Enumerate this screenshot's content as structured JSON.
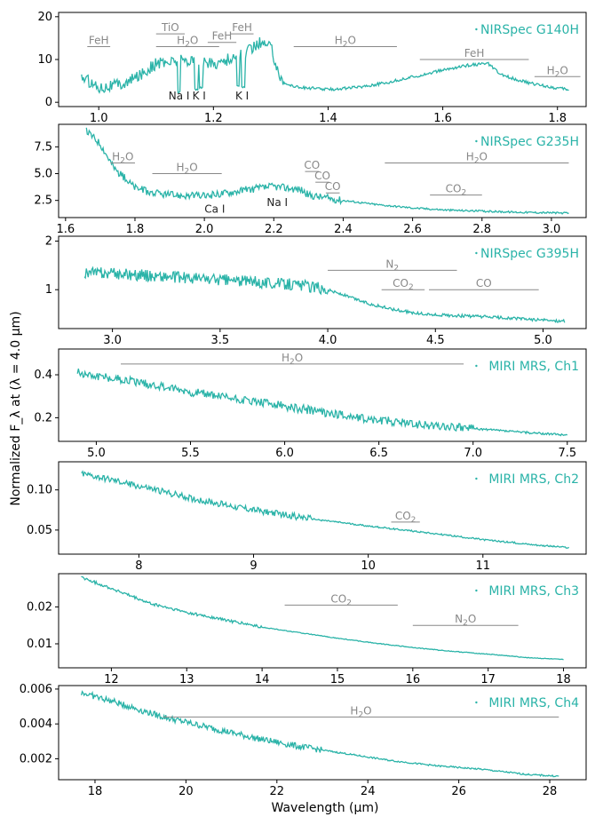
{
  "figure": {
    "ylabel": "Normalized F_λ at (λ = 4.0 μm)",
    "xlabel": "Wavelength (μm)"
  },
  "colors": {
    "spectrum": "#2ab3a8",
    "annotation": "#888888",
    "atom": "#222222"
  },
  "chart_data": [
    {
      "type": "line",
      "legend": "NIRSpec G140H",
      "legend_position": "top-right",
      "xlim": [
        0.93,
        1.85
      ],
      "ylim": [
        -1,
        21
      ],
      "xticks": [
        1.0,
        1.2,
        1.4,
        1.6,
        1.8
      ],
      "xtick_labels": [
        "1.0",
        "1.2",
        "1.4",
        "1.6",
        "1.8"
      ],
      "yticks": [
        0,
        10,
        20
      ],
      "ytick_labels": [
        "0",
        "10",
        "20"
      ],
      "series": [
        {
          "x": [
            0.97,
            1.0,
            1.05,
            1.1,
            1.15,
            1.2,
            1.25,
            1.28,
            1.3,
            1.32,
            1.35,
            1.4,
            1.45,
            1.5,
            1.55,
            1.6,
            1.65,
            1.68,
            1.7,
            1.75,
            1.8,
            1.82
          ],
          "y": [
            6,
            3.5,
            4.5,
            9,
            10,
            9,
            11,
            14,
            13,
            4.5,
            3.5,
            3,
            3.5,
            4.5,
            6,
            7.5,
            8.8,
            9,
            6.5,
            4.5,
            3.3,
            3
          ]
        }
      ],
      "dips": [
        {
          "x": 1.14,
          "y": 2.5
        },
        {
          "x": 1.17,
          "y": 3
        },
        {
          "x": 1.178,
          "y": 3.5
        },
        {
          "x": 1.243,
          "y": 4
        },
        {
          "x": 1.252,
          "y": 3.5
        }
      ],
      "noise": 1.4,
      "noise_range": [
        0.97,
        1.32
      ],
      "annotations": [
        {
          "label": "FeH",
          "sub": "",
          "x1": 0.98,
          "x2": 1.02,
          "y": 13
        },
        {
          "label": "TiO",
          "sub": "",
          "x1": 1.1,
          "x2": 1.15,
          "y": 16
        },
        {
          "label": "H",
          "sub": "2",
          "tail": "O",
          "x1": 1.1,
          "x2": 1.21,
          "y": 13
        },
        {
          "label": "FeH",
          "sub": "",
          "x1": 1.19,
          "x2": 1.24,
          "y": 14
        },
        {
          "label": "FeH",
          "sub": "",
          "x1": 1.23,
          "x2": 1.27,
          "y": 16
        },
        {
          "label": "H",
          "sub": "2",
          "tail": "O",
          "x1": 1.34,
          "x2": 1.52,
          "y": 13
        },
        {
          "label": "FeH",
          "sub": "",
          "x1": 1.56,
          "x2": 1.75,
          "y": 10
        },
        {
          "label": "H",
          "sub": "2",
          "tail": "O",
          "x1": 1.76,
          "x2": 1.84,
          "y": 6
        }
      ],
      "atom_labels": [
        {
          "text": "Na I",
          "x": 1.14,
          "y": 1.5
        },
        {
          "text": "K I",
          "x": 1.175,
          "y": 1.5
        },
        {
          "text": "K I",
          "x": 1.25,
          "y": 1.5
        }
      ]
    },
    {
      "type": "line",
      "legend": "NIRSpec G235H",
      "legend_position": "top-right",
      "xlim": [
        1.58,
        3.1
      ],
      "ylim": [
        0.9,
        9.6
      ],
      "xticks": [
        1.6,
        1.8,
        2.0,
        2.2,
        2.4,
        2.6,
        2.8,
        3.0
      ],
      "xtick_labels": [
        "1.6",
        "1.8",
        "2.0",
        "2.2",
        "2.4",
        "2.6",
        "2.8",
        "3.0"
      ],
      "yticks": [
        2.5,
        5.0,
        7.5
      ],
      "ytick_labels": [
        "2.5",
        "5.0",
        "7.5"
      ],
      "series": [
        {
          "x": [
            1.66,
            1.7,
            1.74,
            1.8,
            1.85,
            1.9,
            2.0,
            2.1,
            2.2,
            2.28,
            2.3,
            2.4,
            2.5,
            2.6,
            2.7,
            2.8,
            2.9,
            3.0,
            3.05
          ],
          "y": [
            9,
            7.8,
            5.5,
            3.7,
            3.2,
            3.0,
            2.9,
            3.4,
            3.8,
            3.5,
            3.0,
            2.5,
            2.1,
            1.8,
            1.6,
            1.5,
            1.4,
            1.35,
            1.3
          ]
        }
      ],
      "dips": [],
      "noise": 0.35,
      "noise_range": [
        1.66,
        2.4
      ],
      "annotations": [
        {
          "label": "H",
          "sub": "2",
          "tail": "O",
          "x1": 1.73,
          "x2": 1.8,
          "y": 6
        },
        {
          "label": "H",
          "sub": "2",
          "tail": "O",
          "x1": 1.85,
          "x2": 2.05,
          "y": 5
        },
        {
          "label": "CO",
          "sub": "",
          "x1": 2.29,
          "x2": 2.33,
          "y": 5.2
        },
        {
          "label": "CO",
          "sub": "",
          "x1": 2.32,
          "x2": 2.36,
          "y": 4.2
        },
        {
          "label": "CO",
          "sub": "",
          "x1": 2.35,
          "x2": 2.39,
          "y": 3.2
        },
        {
          "label": "H",
          "sub": "2",
          "tail": "O",
          "x1": 2.52,
          "x2": 3.05,
          "y": 6
        },
        {
          "label": "CO",
          "sub": "2",
          "tail": "",
          "x1": 2.65,
          "x2": 2.8,
          "y": 3
        }
      ],
      "atom_labels": [
        {
          "text": "Ca I",
          "x": 2.03,
          "y": 1.7
        },
        {
          "text": "Na I",
          "x": 2.21,
          "y": 2.3
        }
      ]
    },
    {
      "type": "line",
      "legend": "NIRSpec G395H",
      "legend_position": "top-right",
      "xlim": [
        2.75,
        5.2
      ],
      "ylim": [
        0.2,
        2.1
      ],
      "xticks": [
        3.0,
        3.5,
        4.0,
        4.5,
        5.0
      ],
      "xtick_labels": [
        "3.0",
        "3.5",
        "4.0",
        "4.5",
        "5.0"
      ],
      "yticks": [
        1,
        2
      ],
      "ytick_labels": [
        "1",
        "2"
      ],
      "series": [
        {
          "x": [
            2.87,
            3.0,
            3.2,
            3.4,
            3.6,
            3.8,
            3.9,
            4.0,
            4.1,
            4.2,
            4.3,
            4.4,
            4.5,
            4.7,
            4.9,
            5.1
          ],
          "y": [
            1.35,
            1.33,
            1.28,
            1.23,
            1.18,
            1.12,
            1.08,
            1.0,
            0.85,
            0.7,
            0.6,
            0.52,
            0.48,
            0.45,
            0.4,
            0.35
          ]
        }
      ],
      "dips": [],
      "noise": 0.12,
      "noise_range": [
        2.87,
        4.0
      ],
      "annotations": [
        {
          "label": "N",
          "sub": "2",
          "tail": "",
          "x1": 4.0,
          "x2": 4.6,
          "y": 1.4
        },
        {
          "label": "CO",
          "sub": "2",
          "tail": "",
          "x1": 4.25,
          "x2": 4.45,
          "y": 1.0
        },
        {
          "label": "CO",
          "sub": "",
          "x1": 4.47,
          "x2": 4.98,
          "y": 1.0
        }
      ],
      "atom_labels": []
    },
    {
      "type": "line",
      "legend": "MIRI MRS, Ch1",
      "legend_position": "top-right",
      "xlim": [
        4.8,
        7.6
      ],
      "ylim": [
        0.09,
        0.52
      ],
      "xticks": [
        5.0,
        5.5,
        6.0,
        6.5,
        7.0,
        7.5
      ],
      "xtick_labels": [
        "5.0",
        "5.5",
        "6.0",
        "6.5",
        "7.0",
        "7.5"
      ],
      "yticks": [
        0.2,
        0.4
      ],
      "ytick_labels": [
        "0.2",
        "0.4"
      ],
      "series": [
        {
          "x": [
            4.9,
            5.2,
            5.5,
            5.8,
            6.1,
            6.4,
            6.7,
            7.0,
            7.3,
            7.5
          ],
          "y": [
            0.41,
            0.37,
            0.32,
            0.28,
            0.24,
            0.2,
            0.17,
            0.15,
            0.13,
            0.12
          ]
        }
      ],
      "dips": [],
      "noise": 0.02,
      "noise_range": [
        4.9,
        7.0
      ],
      "annotations": [
        {
          "label": "H",
          "sub": "2",
          "tail": "O",
          "x1": 5.13,
          "x2": 6.95,
          "y": 0.45
        }
      ],
      "atom_labels": []
    },
    {
      "type": "line",
      "legend": "MIRI MRS, Ch2",
      "legend_position": "top-right",
      "xlim": [
        7.3,
        11.9
      ],
      "ylim": [
        0.02,
        0.135
      ],
      "xticks": [
        8,
        9,
        10,
        11
      ],
      "xtick_labels": [
        "8",
        "9",
        "10",
        "11"
      ],
      "yticks": [
        0.05,
        0.1
      ],
      "ytick_labels": [
        "0.05",
        "0.10"
      ],
      "series": [
        {
          "x": [
            7.5,
            8.0,
            8.5,
            9.0,
            9.5,
            10.0,
            10.5,
            11.0,
            11.5,
            11.75
          ],
          "y": [
            0.12,
            0.105,
            0.088,
            0.075,
            0.064,
            0.055,
            0.047,
            0.038,
            0.031,
            0.028
          ]
        }
      ],
      "dips": [],
      "noise": 0.004,
      "noise_range": [
        7.5,
        9.5
      ],
      "annotations": [
        {
          "label": "CO",
          "sub": "2",
          "tail": "",
          "x1": 10.2,
          "x2": 10.45,
          "y": 0.06
        }
      ],
      "atom_labels": []
    },
    {
      "type": "line",
      "legend": "MIRI MRS, Ch3",
      "legend_position": "top-right",
      "xlim": [
        11.3,
        18.3
      ],
      "ylim": [
        0.0035,
        0.029
      ],
      "xticks": [
        12,
        13,
        14,
        15,
        16,
        17,
        18
      ],
      "xtick_labels": [
        "12",
        "13",
        "14",
        "15",
        "16",
        "17",
        "18"
      ],
      "yticks": [
        0.01,
        0.02
      ],
      "ytick_labels": [
        "0.01",
        "0.02"
      ],
      "series": [
        {
          "x": [
            11.6,
            12.0,
            12.5,
            13.0,
            13.5,
            14.0,
            14.5,
            15.0,
            15.5,
            16.0,
            16.5,
            17.0,
            17.5,
            18.0
          ],
          "y": [
            0.028,
            0.025,
            0.021,
            0.0185,
            0.0165,
            0.0145,
            0.013,
            0.0115,
            0.0102,
            0.009,
            0.008,
            0.0072,
            0.0063,
            0.0057
          ]
        }
      ],
      "dips": [],
      "noise": 0.0004,
      "noise_range": [
        11.6,
        14.0
      ],
      "annotations": [
        {
          "label": "CO",
          "sub": "2",
          "tail": "",
          "x1": 14.3,
          "x2": 15.8,
          "y": 0.0205
        },
        {
          "label": "N",
          "sub": "2",
          "tail": "O",
          "x1": 16.0,
          "x2": 17.4,
          "y": 0.015
        }
      ],
      "atom_labels": []
    },
    {
      "type": "line",
      "legend": "MIRI MRS, Ch4",
      "legend_position": "top-right",
      "xlim": [
        17.2,
        28.8
      ],
      "ylim": [
        0.0008,
        0.0062
      ],
      "xticks": [
        18,
        20,
        22,
        24,
        26,
        28
      ],
      "xtick_labels": [
        "18",
        "20",
        "22",
        "24",
        "26",
        "28"
      ],
      "yticks": [
        0.002,
        0.004,
        0.006
      ],
      "ytick_labels": [
        "0.002",
        "0.004",
        "0.006"
      ],
      "series": [
        {
          "x": [
            17.7,
            18.5,
            19.5,
            20.5,
            21.5,
            22.5,
            23.5,
            24.5,
            25.5,
            26.5,
            27.5,
            28.2
          ],
          "y": [
            0.0058,
            0.0052,
            0.0044,
            0.0038,
            0.0032,
            0.0027,
            0.0023,
            0.0019,
            0.0016,
            0.0014,
            0.0011,
            0.001
          ]
        }
      ],
      "dips": [],
      "noise": 0.00018,
      "noise_range": [
        17.7,
        23.0
      ],
      "annotations": [
        {
          "label": "H",
          "sub": "2",
          "tail": "O",
          "x1": 19.5,
          "x2": 28.2,
          "y": 0.0044
        }
      ],
      "atom_labels": []
    }
  ]
}
